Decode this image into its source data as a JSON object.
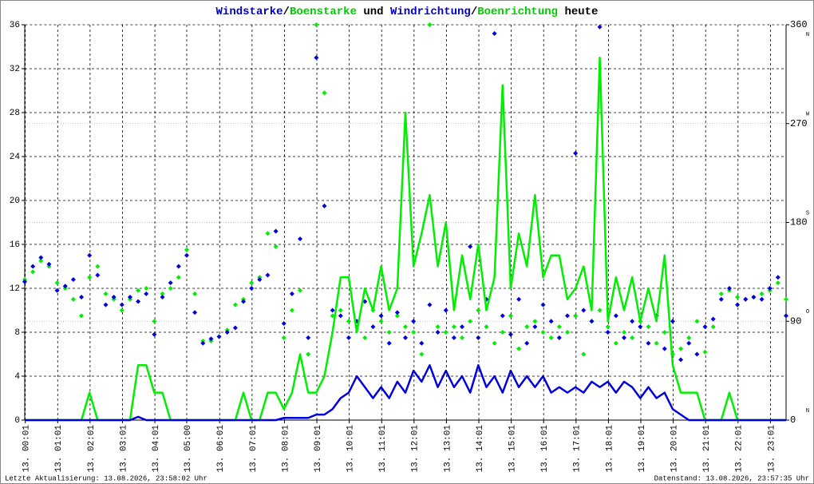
{
  "chart_data": {
    "type": "line",
    "title_parts": [
      {
        "text": "Windstarke",
        "color": "#0000cc"
      },
      {
        "text": "/",
        "color": "#000000"
      },
      {
        "text": "Boenstarke",
        "color": "#00cc00"
      },
      {
        "text": " und ",
        "color": "#000000"
      },
      {
        "text": "Windrichtung",
        "color": "#0000cc"
      },
      {
        "text": "/",
        "color": "#000000"
      },
      {
        "text": "Boenrichtung",
        "color": "#00cc00"
      },
      {
        "text": " heute",
        "color": "#000000"
      }
    ],
    "footer_left": "Letzte Aktualisierung: 13.08.2026, 23:58:02 Uhr",
    "footer_right": "Datenstand: 13.08.2026, 23:57:35 Uhr",
    "grid": true,
    "xlim": [
      0,
      23.5
    ],
    "xticks": [
      {
        "value": 0.017,
        "label": "13. 00:01"
      },
      {
        "value": 1.017,
        "label": "13. 01:01"
      },
      {
        "value": 2.017,
        "label": "13. 02:01"
      },
      {
        "value": 3.017,
        "label": "13. 03:01"
      },
      {
        "value": 4.017,
        "label": "13. 04:01"
      },
      {
        "value": 5,
        "label": "13. 05:00"
      },
      {
        "value": 6.017,
        "label": "13. 06:01"
      },
      {
        "value": 7.017,
        "label": "13. 07:01"
      },
      {
        "value": 8.017,
        "label": "13. 08:01"
      },
      {
        "value": 9.017,
        "label": "13. 09:01"
      },
      {
        "value": 10.017,
        "label": "13. 10:01"
      },
      {
        "value": 11.017,
        "label": "13. 11:01"
      },
      {
        "value": 12.017,
        "label": "13. 12:01"
      },
      {
        "value": 13.017,
        "label": "13. 13:01"
      },
      {
        "value": 14.017,
        "label": "13. 14:01"
      },
      {
        "value": 15.017,
        "label": "13. 15:01"
      },
      {
        "value": 16.017,
        "label": "13. 16:01"
      },
      {
        "value": 17.017,
        "label": "13. 17:01"
      },
      {
        "value": 18.017,
        "label": "13. 18:01"
      },
      {
        "value": 19.017,
        "label": "13. 19:01"
      },
      {
        "value": 20.017,
        "label": "13. 20:01"
      },
      {
        "value": 21.017,
        "label": "13. 21:01"
      },
      {
        "value": 22.017,
        "label": "13. 22:01"
      },
      {
        "value": 23.017,
        "label": "13. 23:01"
      }
    ],
    "ylim": [
      0,
      36
    ],
    "yticks": [
      0,
      4,
      8,
      12,
      16,
      20,
      24,
      28,
      32,
      36
    ],
    "y2lim": [
      0,
      360
    ],
    "y2ticks": [
      0,
      90,
      180,
      270,
      360
    ],
    "y2_compass": [
      {
        "value": 0,
        "label": "N"
      },
      {
        "value": 90,
        "label": "O"
      },
      {
        "value": 180,
        "label": "S"
      },
      {
        "value": 270,
        "label": "W"
      },
      {
        "value": 360,
        "label": "N"
      }
    ],
    "x": [
      0,
      0.25,
      0.5,
      0.75,
      1,
      1.25,
      1.5,
      1.75,
      2,
      2.25,
      2.5,
      2.75,
      3,
      3.25,
      3.5,
      3.75,
      4,
      4.25,
      4.5,
      4.75,
      5,
      5.25,
      5.5,
      5.75,
      6,
      6.25,
      6.5,
      6.75,
      7,
      7.25,
      7.5,
      7.75,
      8,
      8.25,
      8.5,
      8.75,
      9,
      9.25,
      9.5,
      9.75,
      10,
      10.25,
      10.5,
      10.75,
      11,
      11.25,
      11.5,
      11.75,
      12,
      12.25,
      12.5,
      12.75,
      13,
      13.25,
      13.5,
      13.75,
      14,
      14.25,
      14.5,
      14.75,
      15,
      15.25,
      15.5,
      15.75,
      16,
      16.25,
      16.5,
      16.75,
      17,
      17.25,
      17.5,
      17.75,
      18,
      18.25,
      18.5,
      18.75,
      19,
      19.25,
      19.5,
      19.75,
      20,
      20.25,
      20.5,
      20.75,
      21,
      21.25,
      21.5,
      21.75,
      22,
      22.25,
      22.5,
      22.75,
      23,
      23.25,
      23.5
    ],
    "series": [
      {
        "color": "#00ee00",
        "style": "markers",
        "axis": "y2",
        "values": [
          128,
          135,
          145,
          140,
          125,
          120,
          110,
          95,
          130,
          140,
          115,
          110,
          100,
          110,
          118,
          120,
          90,
          115,
          120,
          130,
          155,
          115,
          72,
          72,
          76,
          82,
          105,
          110,
          125,
          130,
          170,
          158,
          75,
          100,
          118,
          60,
          360,
          298,
          95,
          100,
          90,
          85,
          75,
          100,
          90,
          80,
          95,
          85,
          80,
          60,
          360,
          85,
          80,
          85,
          75,
          90,
          100,
          85,
          70,
          80,
          95,
          65,
          85,
          90,
          80,
          75,
          85,
          80,
          95,
          60,
          90,
          100,
          85,
          70,
          80,
          75,
          90,
          85,
          70,
          80,
          60,
          65,
          75,
          90,
          62,
          85,
          115,
          118,
          112,
          110,
          112,
          115,
          118,
          125,
          110
        ]
      },
      {
        "color": "#0000dd",
        "style": "markers",
        "axis": "y2",
        "values": [
          126,
          140,
          148,
          142,
          118,
          122,
          128,
          112,
          150,
          132,
          105,
          112,
          105,
          112,
          108,
          115,
          78,
          112,
          125,
          140,
          150,
          98,
          70,
          74,
          76,
          80,
          84,
          108,
          120,
          128,
          132,
          172,
          88,
          115,
          165,
          75,
          330,
          195,
          100,
          95,
          75,
          90,
          108,
          85,
          95,
          70,
          98,
          75,
          90,
          70,
          105,
          80,
          100,
          75,
          85,
          158,
          75,
          110,
          352,
          95,
          78,
          110,
          70,
          85,
          105,
          90,
          75,
          95,
          243,
          100,
          90,
          358,
          80,
          95,
          75,
          90,
          85,
          70,
          95,
          65,
          90,
          55,
          70,
          60,
          85,
          92,
          110,
          120,
          105,
          110,
          112,
          110,
          120,
          130,
          95
        ]
      },
      {
        "color": "#00ee00",
        "style": "line",
        "values": [
          0,
          0,
          0,
          0,
          0,
          0,
          0,
          0,
          2.5,
          0,
          0,
          0,
          0,
          0,
          5,
          5,
          2.5,
          2.5,
          0,
          0,
          0,
          0,
          0,
          0,
          0,
          0,
          0,
          2.5,
          0,
          0,
          2.5,
          2.5,
          1,
          2.5,
          6,
          2.5,
          2.5,
          4,
          8,
          13,
          13,
          8,
          12,
          10,
          14,
          10,
          12,
          28,
          14,
          17,
          20.5,
          14,
          18,
          10,
          15,
          11,
          16,
          10,
          13,
          30.5,
          12,
          17,
          14,
          20.5,
          13,
          15,
          15,
          11,
          12,
          14,
          10,
          33,
          9,
          13,
          10,
          13,
          9,
          12,
          9,
          15,
          5,
          2.5,
          2.5,
          2.5,
          0,
          0,
          0,
          2.5,
          0,
          0,
          0,
          0,
          0,
          0,
          0
        ]
      },
      {
        "color": "#0000dd",
        "style": "line",
        "values": [
          0,
          0,
          0,
          0,
          0,
          0,
          0,
          0,
          0,
          0,
          0,
          0,
          0,
          0,
          0.3,
          0,
          0,
          0,
          0,
          0,
          0,
          0,
          0,
          0,
          0,
          0,
          0,
          0,
          0,
          0,
          0,
          0,
          0.2,
          0.2,
          0.2,
          0.2,
          0.5,
          0.5,
          1,
          2,
          2.5,
          4,
          3,
          2,
          3,
          2,
          3.5,
          2.5,
          4.5,
          3.5,
          5,
          3,
          4.5,
          3,
          4,
          2.5,
          5,
          3,
          4,
          2.5,
          4.5,
          3,
          4,
          3,
          4,
          2.5,
          3,
          2.5,
          3,
          2.5,
          3.5,
          3,
          3.5,
          2.5,
          3.5,
          3,
          2,
          3,
          2,
          2.5,
          1,
          0.5,
          0,
          0,
          0,
          0,
          0,
          0,
          0,
          0,
          0,
          0,
          0,
          0,
          0
        ]
      }
    ]
  }
}
